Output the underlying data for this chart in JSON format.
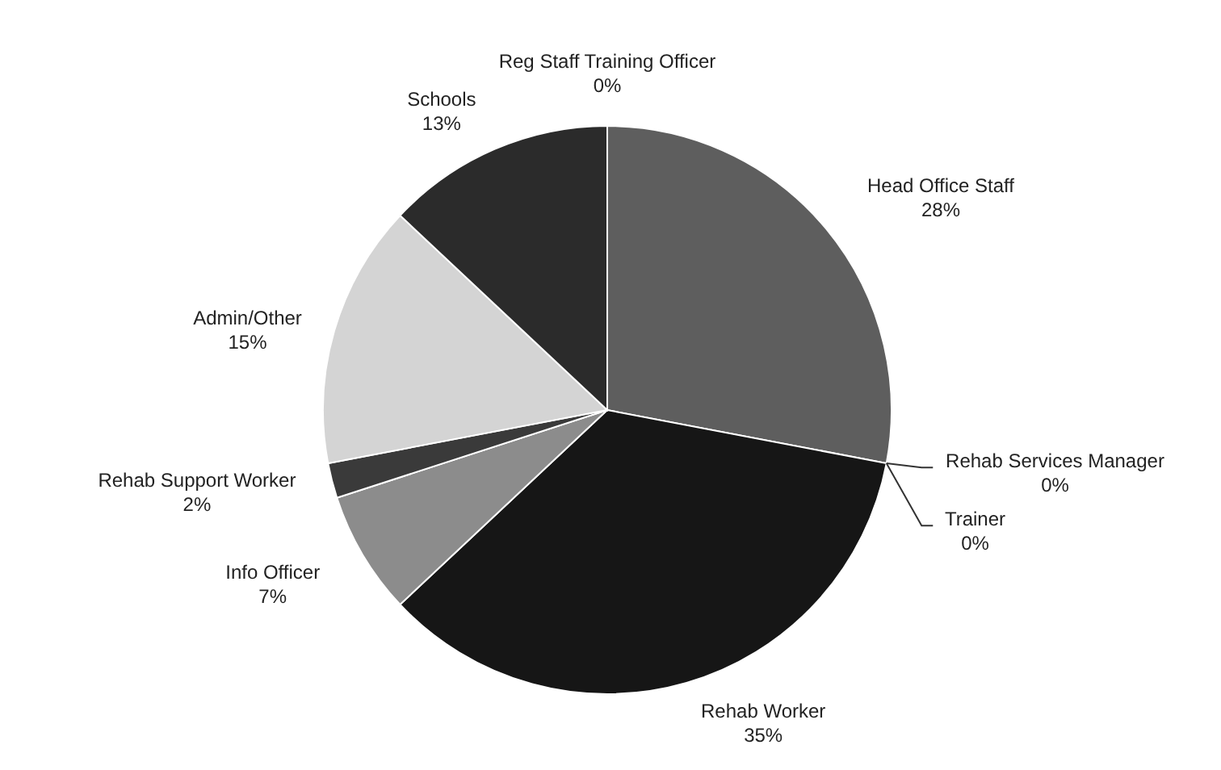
{
  "chart_data": {
    "type": "pie",
    "categories": [
      "Reg Staff Training Officer",
      "Head Office Staff",
      "Rehab Services Manager",
      "Trainer",
      "Rehab Worker",
      "Info Officer",
      "Rehab Support Worker",
      "Admin/Other",
      "Schools"
    ],
    "values": [
      0,
      28,
      0,
      0,
      35,
      7,
      2,
      15,
      13
    ],
    "value_labels": [
      "0%",
      "28%",
      "0%",
      "0%",
      "35%",
      "7%",
      "2%",
      "15%",
      "13%"
    ],
    "colors": [
      "#444444",
      "#5e5e5e",
      "#333333",
      "#222222",
      "#161616",
      "#8c8c8c",
      "#3a3a3a",
      "#d4d4d4",
      "#2b2b2b"
    ]
  }
}
